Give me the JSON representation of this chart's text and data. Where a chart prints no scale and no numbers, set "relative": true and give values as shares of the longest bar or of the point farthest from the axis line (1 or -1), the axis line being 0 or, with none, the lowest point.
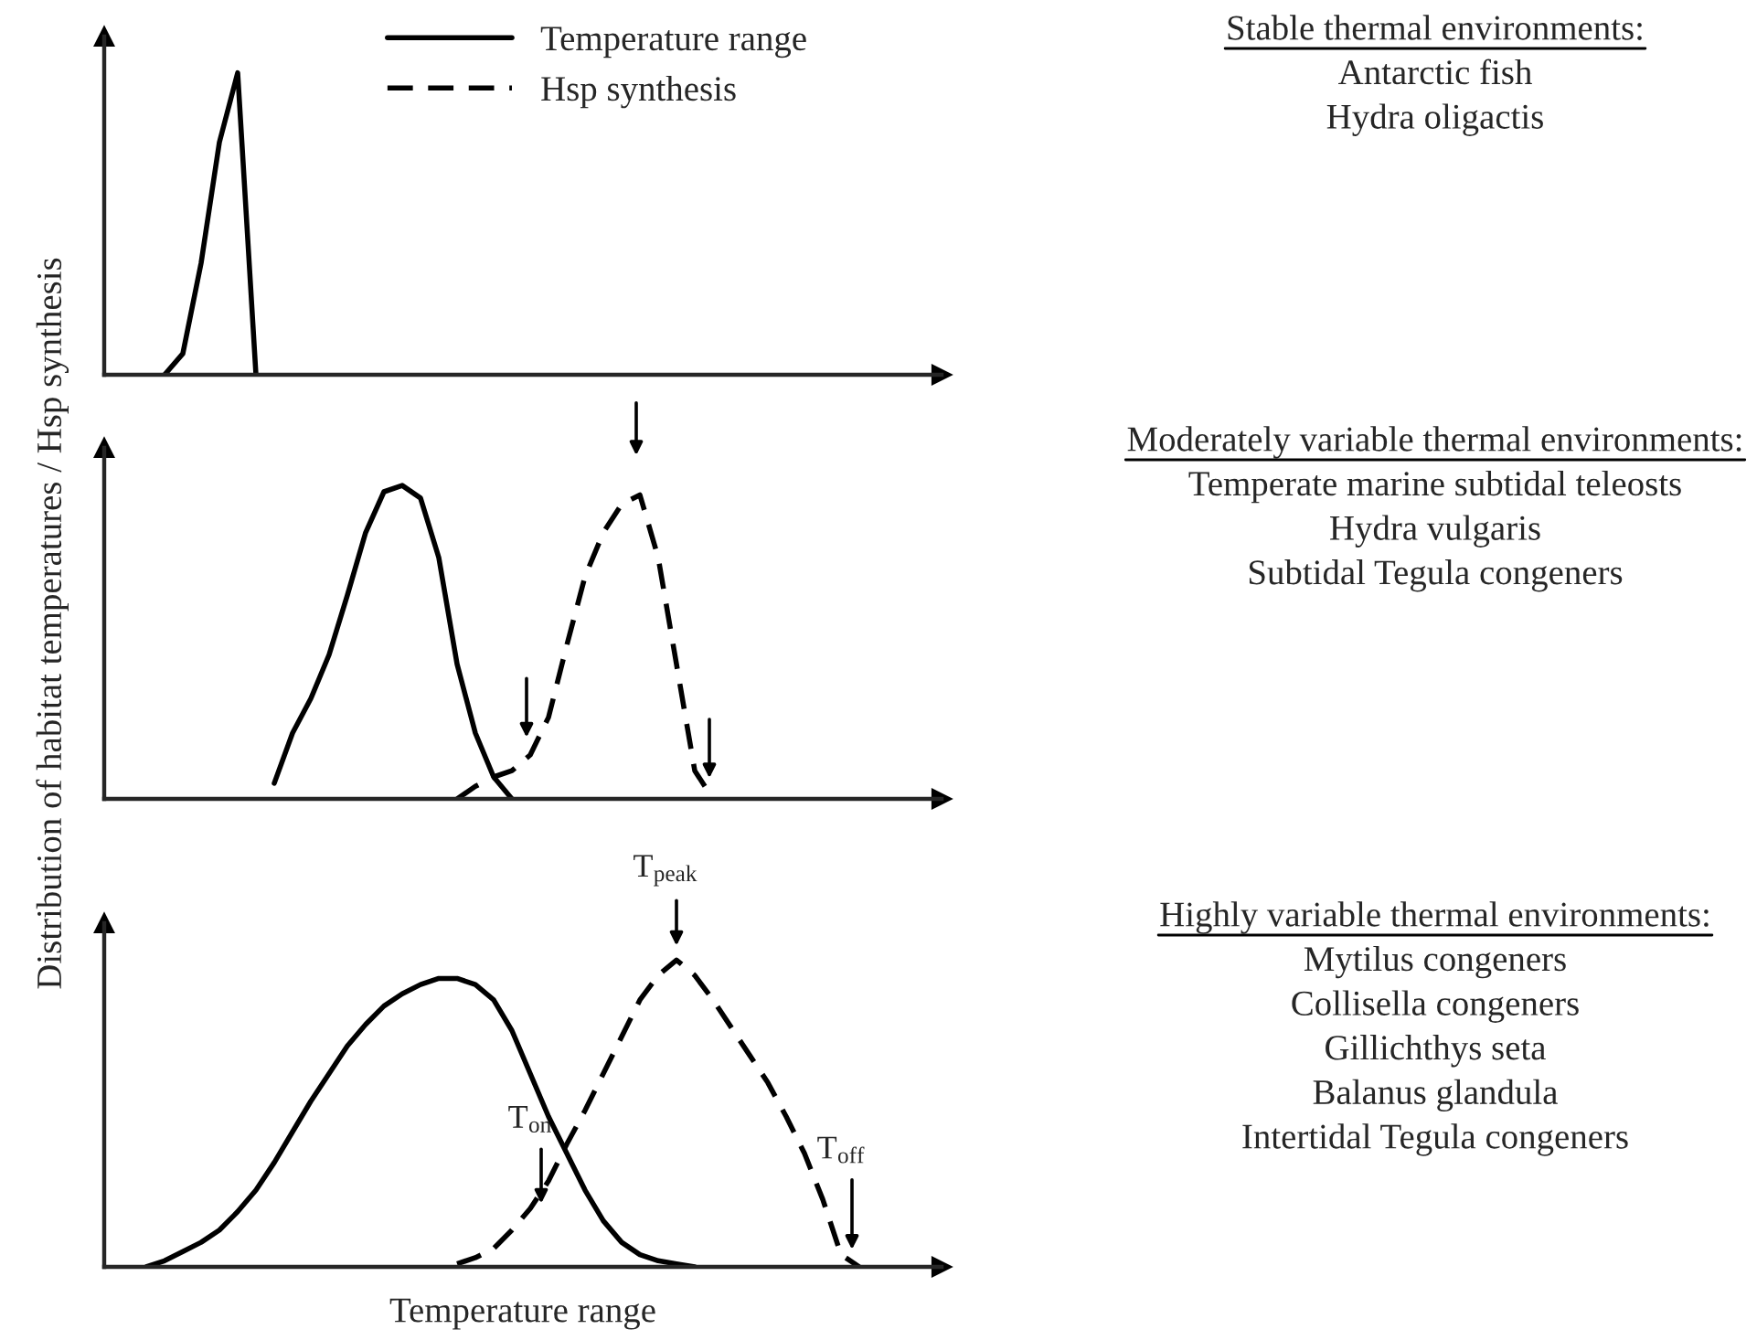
{
  "chart_data": [
    {
      "type": "line",
      "relative": true,
      "legend": "top",
      "categories": [
        null,
        null,
        null,
        null,
        null,
        null,
        null,
        null,
        null,
        null,
        null,
        null,
        null,
        null,
        null,
        null,
        null,
        null,
        null,
        null,
        null,
        null,
        null,
        null,
        null,
        null,
        null,
        null,
        null,
        null,
        null,
        null,
        null,
        null,
        null,
        null,
        null,
        null,
        null,
        null,
        null,
        null,
        null,
        null,
        null,
        null
      ],
      "series": [
        {
          "name": "Temperature range",
          "color": "#000000",
          "line_style": "solid",
          "values": [
            null,
            null,
            null,
            0.0,
            0.07,
            0.37,
            0.77,
            1.0,
            0.0,
            null,
            null,
            null,
            null,
            null,
            null,
            null,
            null,
            null,
            null,
            null,
            null,
            null,
            null,
            null,
            null,
            null,
            null,
            null,
            null,
            null,
            null,
            null,
            null,
            null,
            null,
            null,
            null,
            null,
            null,
            null,
            null,
            null,
            null,
            null,
            null,
            null
          ]
        },
        {
          "name": "Hsp synthesis",
          "color": "#000000",
          "line_style": "dashed",
          "values": [
            null,
            null,
            null,
            null,
            null,
            null,
            null,
            null,
            null,
            null,
            null,
            null,
            null,
            null,
            null,
            null,
            null,
            null,
            null,
            null,
            null,
            null,
            null,
            null,
            null,
            null,
            null,
            null,
            null,
            null,
            null,
            null,
            null,
            null,
            null,
            null,
            null,
            null,
            null,
            null,
            null,
            null,
            null,
            null,
            null,
            null
          ]
        }
      ],
      "annotations": [
        "Stable thermal environments:",
        "Antarctic fish",
        "Hydra oligactis"
      ]
    },
    {
      "type": "line",
      "relative": true,
      "ylabel": "Distribution of habitat temperatures / Hsp synthesis",
      "categories": [
        null,
        null,
        null,
        null,
        null,
        null,
        null,
        null,
        null,
        null,
        null,
        null,
        null,
        null,
        null,
        null,
        null,
        null,
        null,
        null,
        null,
        null,
        null,
        null,
        null,
        null,
        null,
        null,
        null,
        null,
        null,
        null,
        null,
        null,
        null,
        null,
        null,
        null,
        null,
        null,
        null,
        null,
        null,
        null,
        null,
        null
      ],
      "series": [
        {
          "color": "#000000",
          "line_style": "solid",
          "values": [
            null,
            null,
            null,
            null,
            null,
            null,
            null,
            null,
            null,
            0.05,
            0.21,
            0.32,
            0.46,
            0.65,
            0.85,
            0.98,
            1.0,
            0.96,
            0.77,
            0.43,
            0.21,
            0.07,
            0.0,
            null,
            null,
            null,
            null,
            null,
            null,
            null,
            null,
            null,
            null,
            null,
            null,
            null,
            null,
            null,
            null,
            null,
            null,
            null,
            null,
            null,
            null,
            null
          ]
        },
        {
          "color": "#000000",
          "line_style": "dashed",
          "values": [
            null,
            null,
            null,
            null,
            null,
            null,
            null,
            null,
            null,
            null,
            null,
            null,
            null,
            null,
            null,
            null,
            null,
            null,
            null,
            0.0,
            0.04,
            0.07,
            0.09,
            0.14,
            0.26,
            0.49,
            0.71,
            0.85,
            0.94,
            0.97,
            0.77,
            0.43,
            0.09,
            0.0,
            null,
            null,
            null,
            null,
            null,
            null,
            null,
            null,
            null,
            null,
            null,
            null
          ]
        }
      ],
      "annotations": [
        "Moderately variable thermal environments:",
        "Temperate marine subtidal teleosts",
        "Hydra vulgaris",
        "Subtidal Tegula congeners"
      ]
    },
    {
      "type": "line",
      "relative": true,
      "xlabel": "Temperature range",
      "categories": [
        null,
        null,
        null,
        null,
        null,
        null,
        null,
        null,
        null,
        null,
        null,
        null,
        null,
        null,
        null,
        null,
        null,
        null,
        null,
        null,
        null,
        null,
        null,
        null,
        null,
        null,
        null,
        null,
        null,
        null,
        null,
        null,
        null,
        null,
        null,
        null,
        null,
        null,
        null,
        null,
        null,
        null,
        null,
        null,
        null,
        null
      ],
      "series": [
        {
          "color": "#000000",
          "line_style": "solid",
          "values": [
            null,
            null,
            0.0,
            0.02,
            0.05,
            0.08,
            0.12,
            0.18,
            0.25,
            0.34,
            0.44,
            0.54,
            0.63,
            0.72,
            0.79,
            0.85,
            0.89,
            0.92,
            0.94,
            0.94,
            0.92,
            0.87,
            0.77,
            0.63,
            0.49,
            0.37,
            0.25,
            0.15,
            0.08,
            0.04,
            0.02,
            0.01,
            0.0,
            null,
            null,
            null,
            null,
            null,
            null,
            null,
            null,
            null,
            null,
            null,
            null,
            null
          ]
        },
        {
          "color": "#000000",
          "line_style": "dashed",
          "values": [
            null,
            null,
            null,
            null,
            null,
            null,
            null,
            null,
            null,
            null,
            null,
            null,
            null,
            null,
            null,
            null,
            null,
            null,
            null,
            0.01,
            0.03,
            0.06,
            0.12,
            0.19,
            0.28,
            0.4,
            0.51,
            0.63,
            0.75,
            0.87,
            0.95,
            1.0,
            0.95,
            0.87,
            0.78,
            0.69,
            0.6,
            0.49,
            0.37,
            0.22,
            0.04,
            0.0,
            null,
            null,
            null,
            null
          ]
        }
      ],
      "annotations": [
        "T$_{on}$",
        "T$_{peak}$",
        "T$_{off}$",
        "Highly variable thermal environments:",
        "Mytilus congeners",
        "Collisella congeners",
        "Gillichthys seta",
        "Balanus glandula",
        "Intertidal Tegula congeners"
      ]
    }
  ]
}
